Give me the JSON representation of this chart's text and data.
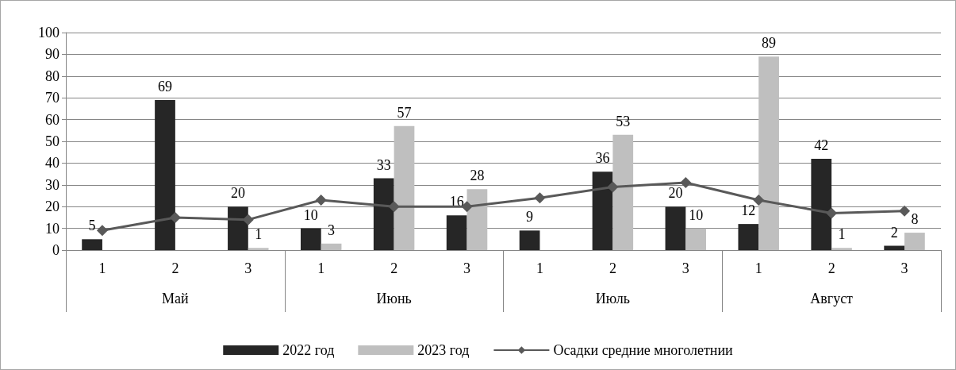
{
  "chart_data": {
    "type": "bar",
    "categories": [
      "1",
      "2",
      "3",
      "1",
      "2",
      "3",
      "1",
      "2",
      "3",
      "1",
      "2",
      "3"
    ],
    "annotations": [
      "Май",
      "Июнь",
      "Июль",
      "Август"
    ],
    "series": [
      {
        "name": "2022 год",
        "color": "#262626",
        "values": [
          5,
          69,
          20,
          10,
          33,
          16,
          9,
          36,
          20,
          12,
          42,
          2
        ],
        "value_labels": [
          "5",
          "69",
          "20",
          "10",
          "33",
          "16",
          "9",
          "36",
          "20",
          "12",
          "42",
          "2"
        ]
      },
      {
        "name": "2023 год",
        "color": "#bfbfbf",
        "values": [
          null,
          null,
          1,
          3,
          57,
          28,
          0,
          53,
          10,
          89,
          1,
          8
        ],
        "value_labels": [
          null,
          null,
          "1",
          "3",
          "57",
          "28",
          null,
          "53",
          "10",
          "89",
          "1",
          "8"
        ]
      },
      {
        "name": "Осадки средние многолетнии",
        "type": "line",
        "color": "#595959",
        "values": [
          9,
          15,
          14,
          23,
          20,
          20,
          24,
          29,
          31,
          23,
          17,
          18
        ],
        "marker": "diamond",
        "line_style": "solid"
      }
    ],
    "ylim": [
      0,
      100
    ],
    "yticks": [
      0,
      10,
      20,
      30,
      40,
      50,
      60,
      70,
      80,
      90,
      100
    ],
    "grid": "y",
    "legend": "bottom"
  }
}
